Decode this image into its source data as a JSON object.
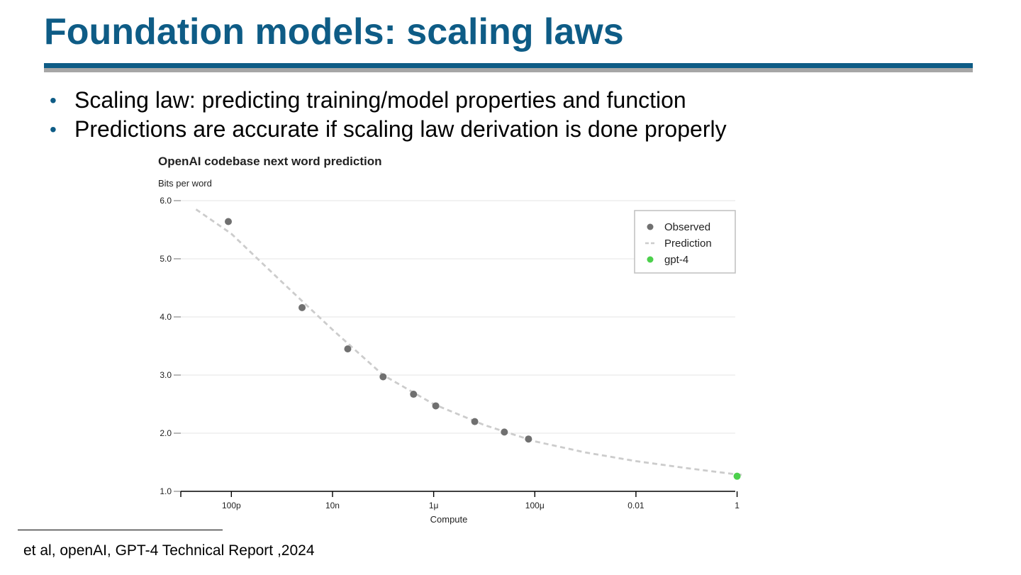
{
  "slide": {
    "title": "Foundation models: scaling laws",
    "bullets": [
      "Scaling law: predicting training/model properties and function",
      "Predictions are accurate if scaling law derivation is done properly"
    ],
    "footnote": "et al, openAI, GPT-4 Technical Report ,2024"
  },
  "colors": {
    "title": "#0e5c86",
    "observed": "#707070",
    "prediction": "#cccccc",
    "gpt4": "#4cd04c"
  },
  "chart_data": {
    "type": "scatter",
    "title": "OpenAI codebase next word prediction",
    "ylabel": "Bits per word",
    "xlabel": "Compute",
    "xscale": "log",
    "xlim": [
      1e-11,
      1.4
    ],
    "ylim": [
      1.0,
      6.0
    ],
    "x_ticks": [
      {
        "value": 1e-10,
        "label": "100p"
      },
      {
        "value": 1e-08,
        "label": "10n"
      },
      {
        "value": 1e-06,
        "label": "1μ"
      },
      {
        "value": 0.0001,
        "label": "100μ"
      },
      {
        "value": 0.01,
        "label": "0.01"
      },
      {
        "value": 1,
        "label": "1"
      }
    ],
    "y_ticks": [
      {
        "value": 1.0,
        "label": "1.0"
      },
      {
        "value": 2.0,
        "label": "2.0"
      },
      {
        "value": 3.0,
        "label": "3.0"
      },
      {
        "value": 4.0,
        "label": "4.0"
      },
      {
        "value": 5.0,
        "label": "5.0"
      },
      {
        "value": 6.0,
        "label": "6.0"
      }
    ],
    "grid": true,
    "legend": "top-right",
    "series": [
      {
        "name": "Observed",
        "kind": "points",
        "x": [
          8.7e-11,
          2.5e-09,
          2e-08,
          1e-07,
          4e-07,
          1.1e-06,
          6.5e-06,
          2.5e-05,
          7.5e-05
        ],
        "y": [
          5.64,
          4.16,
          3.45,
          2.97,
          2.67,
          2.47,
          2.2,
          2.02,
          1.9
        ]
      },
      {
        "name": "Prediction",
        "kind": "dashed-line",
        "x": [
          2e-11,
          1e-10,
          1e-09,
          1e-08,
          1e-07,
          1e-06,
          1e-05,
          0.0001,
          0.001,
          0.01,
          0.1,
          1,
          1.4
        ],
        "y": [
          5.85,
          5.43,
          4.6,
          3.78,
          3.0,
          2.5,
          2.14,
          1.86,
          1.67,
          1.52,
          1.4,
          1.29,
          1.28
        ]
      },
      {
        "name": "gpt-4",
        "kind": "points",
        "x": [
          1
        ],
        "y": [
          1.26
        ]
      }
    ]
  }
}
